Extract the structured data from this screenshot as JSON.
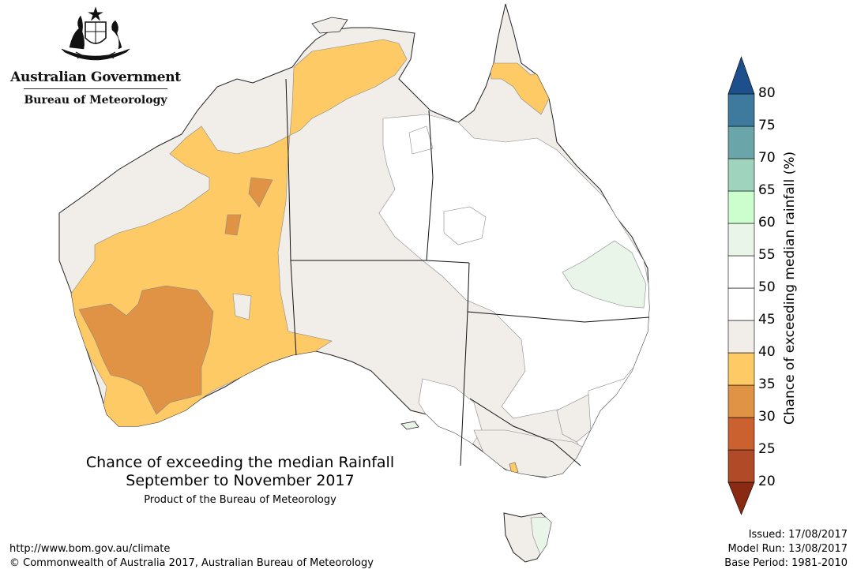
{
  "header": {
    "government_name": "Australian Government",
    "bureau_name": "Bureau of Meteorology"
  },
  "map": {
    "title": "Chance of exceeding the median Rainfall",
    "period": "September to November 2017",
    "product_note": "Product of the Bureau of Meteorology",
    "region": "Australia"
  },
  "legend": {
    "title": "Chance of exceeding median rainfall (%)",
    "ticks": [
      "20",
      "25",
      "30",
      "35",
      "40",
      "45",
      "50",
      "55",
      "60",
      "65",
      "70",
      "75",
      "80"
    ],
    "bins": [
      {
        "range": "<20",
        "color": "#8b2a12"
      },
      {
        "range": "20-25",
        "color": "#b04a27"
      },
      {
        "range": "25-30",
        "color": "#cc6130"
      },
      {
        "range": "30-35",
        "color": "#e19345"
      },
      {
        "range": "35-40",
        "color": "#fdca66"
      },
      {
        "range": "40-45",
        "color": "#f1ede8"
      },
      {
        "range": "45-50",
        "color": "#ffffff"
      },
      {
        "range": "50-55",
        "color": "#ffffff"
      },
      {
        "range": "55-60",
        "color": "#eaf5ea"
      },
      {
        "range": "60-65",
        "color": "#ccfdcc"
      },
      {
        "range": "65-70",
        "color": "#9fd3bd"
      },
      {
        "range": "70-75",
        "color": "#6aa5aa"
      },
      {
        "range": "75-80",
        "color": "#3d7a9d"
      },
      {
        "range": ">80",
        "color": "#1c4f8b"
      }
    ]
  },
  "footer": {
    "url": "http://www.bom.gov.au/climate",
    "copyright": "© Commonwealth of Australia 2017, Australian Bureau of Meteorology"
  },
  "metadata": {
    "issued": "Issued: 17/08/2017",
    "model_run": "Model Run: 13/08/2017",
    "base_period": "Base Period: 1981-2010"
  },
  "icons": {
    "emblem": "coat-of-arms-icon"
  }
}
